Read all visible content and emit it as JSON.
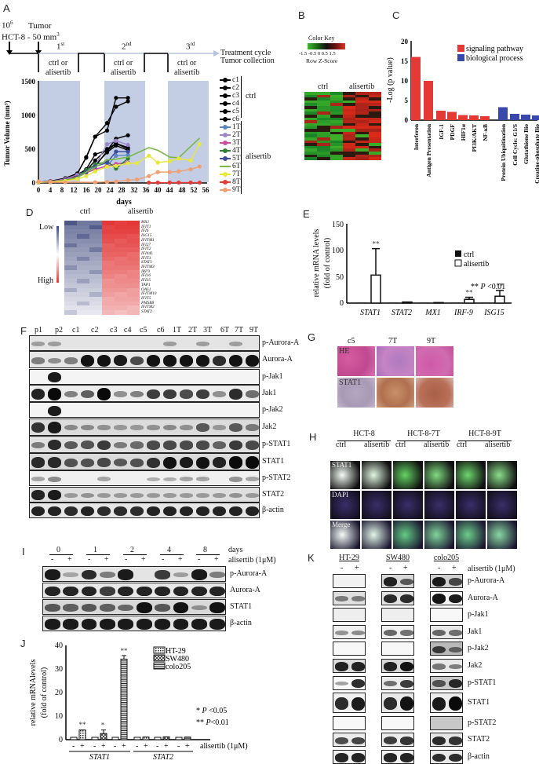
{
  "panel_labels": {
    "A": "A",
    "B": "B",
    "C": "C",
    "D": "D",
    "E": "E",
    "F": "F",
    "G": "G",
    "H": "H",
    "I": "I",
    "J": "J",
    "K": "K"
  },
  "panelA": {
    "schedule": {
      "cells_label": "10",
      "cells_sup": "6",
      "cell_line": "HCT-8 - 50 mm",
      "cell_line_sup": "3",
      "tumor_label": "Tumor",
      "cycles": [
        {
          "num": "1",
          "sup": "st",
          "text1": "ctrl or",
          "text2": "alisertib"
        },
        {
          "num": "2",
          "sup": "nd",
          "text1": "ctrl or",
          "text2": "alisertib"
        },
        {
          "num": "3",
          "sup": "rd",
          "text1": "ctrl or",
          "text2": "alisertib"
        }
      ],
      "arrow_label1": "Treatment cycle",
      "arrow_label2": "Tumor collection"
    },
    "legend": {
      "ctrl_group": "ctrl",
      "alisertib_group": "alisertib",
      "items": [
        "c1",
        "c2",
        "c3",
        "c4",
        "c5",
        "c6",
        "1T",
        "2T",
        "3T",
        "4T",
        "5T",
        "6T",
        "7T",
        "8T",
        "9T"
      ]
    }
  },
  "panelB": {
    "color_key_title": "Color Key",
    "color_key_ticks": "-1.5 -0.5  0  0.5 1.5",
    "color_key_sub": "Row Z-Score",
    "col_ctrl": "ctrl",
    "col_alisertib": "alisertib"
  },
  "panelD": {
    "col_ctrl": "ctrl",
    "col_alisertib": "alisertib",
    "low": "Low",
    "high": "High",
    "genes": [
      "MX1",
      "IFIT1",
      "IFI6",
      "ISG15",
      "IFITM1",
      "IFI27",
      "IFIT2",
      "IFI44L",
      "IFIT3",
      "STAT1",
      "IFITM3",
      "IRF9",
      "IFI16",
      "IFI35",
      "TAP1",
      "OAS1",
      "IFITM10",
      "IFIT5",
      "PMSB8",
      "IFITM2",
      "STAT2"
    ]
  },
  "panelE": {
    "ylabel1": "relative mRNA levels",
    "ylabel2": "(fold of control)",
    "legend_ctrl": "ctrl",
    "legend_alisertib": "alisertib",
    "pnote": "** P <0.01",
    "sig": "**"
  },
  "panelF": {
    "lanes": [
      "p1",
      "p2",
      "c1",
      "c2",
      "c3",
      "c4",
      "c5",
      "c6",
      "1T",
      "2T",
      "3T",
      "6T",
      "7T",
      "9T"
    ],
    "rows": [
      "p-Aurora-A",
      "Aurora-A",
      "p-Jak1",
      "Jak1",
      "p-Jak2",
      "Jak2",
      "p-STAT1",
      "STAT1",
      "p-STAT2",
      "STAT2",
      "β-actin"
    ]
  },
  "panelG": {
    "cols": [
      "c5",
      "7T",
      "9T"
    ],
    "rows": [
      "HE",
      "STAT1"
    ]
  },
  "panelH": {
    "groups": [
      "HCT-8",
      "HCT-8-7T",
      "HCT-8-9T"
    ],
    "sub": [
      "ctrl",
      "alisertib"
    ],
    "rows": [
      "STAT1",
      "DAPI",
      "Merge"
    ]
  },
  "panelI": {
    "days": [
      "0",
      "1",
      "2",
      "4",
      "8"
    ],
    "days_label": "days",
    "treat_label": "alisertib (1μM)",
    "signs": [
      "-",
      "+"
    ],
    "rows": [
      "p-Aurora-A",
      "Aurora-A",
      "STAT1",
      "β-actin"
    ]
  },
  "panelJ": {
    "ylabel1": "relative mRNAlevels",
    "ylabel2": "(fold of control)",
    "legend": [
      "HT-29",
      "SW480",
      "colo205"
    ],
    "p1": "* P <0.05",
    "p2": "** P<0.01",
    "treat_label": "alisertib (1μM)",
    "genes": [
      "STAT1",
      "STAT2"
    ]
  },
  "panelK": {
    "lines": [
      "HT-29",
      "SW480",
      "colo205"
    ],
    "treat_label": "alisertib (1μM)",
    "rows": [
      "p-Aurora-A",
      "Aurora-A",
      "p-Jak1",
      "Jak1",
      "p-Jak2",
      "Jak2",
      "p-STAT1",
      "STAT1",
      "p-STAT2",
      "STAT2",
      "β-actin"
    ]
  },
  "chart_data": [
    {
      "id": "A",
      "type": "line",
      "title": "",
      "xlabel": "days",
      "ylabel": "Tumor Volume (mm3)",
      "xlim": [
        0,
        56
      ],
      "ylim": [
        0,
        1500
      ],
      "xticks": [
        0,
        4,
        8,
        12,
        16,
        20,
        24,
        28,
        32,
        36,
        40,
        44,
        48,
        52,
        56
      ],
      "yticks": [
        0,
        500,
        1000,
        1500
      ],
      "shaded_intervals": [
        [
          0,
          14
        ],
        [
          22,
          36
        ],
        [
          44,
          56
        ]
      ],
      "series": [
        {
          "name": "c1",
          "color": "#000000",
          "x": [
            0,
            4,
            9,
            13,
            16,
            19,
            23,
            26,
            30
          ],
          "y": [
            10,
            20,
            60,
            120,
            200,
            420,
            480,
            650,
            700
          ]
        },
        {
          "name": "c2",
          "color": "#000000",
          "x": [
            0,
            4,
            9,
            13,
            16,
            19,
            23,
            26,
            30
          ],
          "y": [
            10,
            20,
            50,
            100,
            180,
            330,
            500,
            580,
            520
          ]
        },
        {
          "name": "c3",
          "color": "#000000",
          "x": [
            0,
            4,
            9,
            13,
            16,
            19,
            23,
            26,
            30
          ],
          "y": [
            10,
            25,
            70,
            130,
            380,
            680,
            880,
            1120,
            1200
          ]
        },
        {
          "name": "c4",
          "color": "#000000",
          "x": [
            0,
            4,
            9,
            13,
            16,
            19,
            23,
            26,
            30
          ],
          "y": [
            10,
            25,
            70,
            140,
            370,
            680,
            770,
            1250,
            1250
          ]
        },
        {
          "name": "c5",
          "color": "#000000",
          "x": [
            0,
            4,
            9,
            13,
            16,
            19,
            23,
            26,
            30
          ],
          "y": [
            10,
            20,
            50,
            100,
            200,
            260,
            450,
            550,
            480
          ]
        },
        {
          "name": "c6",
          "color": "#000000",
          "x": [
            0,
            4,
            9,
            13,
            16,
            19,
            23,
            26,
            30
          ],
          "y": [
            10,
            20,
            40,
            90,
            160,
            240,
            470,
            580,
            500
          ]
        },
        {
          "name": "1T",
          "color": "#5b86c6",
          "x": [
            0,
            4,
            9,
            13,
            16,
            19,
            23,
            26,
            30
          ],
          "y": [
            10,
            15,
            40,
            80,
            150,
            200,
            250,
            400,
            410
          ]
        },
        {
          "name": "2T",
          "color": "#9a86c9",
          "x": [
            0,
            4,
            9,
            13,
            16,
            19,
            23,
            26,
            30
          ],
          "y": [
            10,
            20,
            60,
            120,
            170,
            250,
            570,
            620,
            560
          ]
        },
        {
          "name": "3T",
          "color": "#c94fa5",
          "x": [
            0,
            4,
            9,
            13,
            16,
            19,
            23,
            26,
            30
          ],
          "y": [
            10,
            20,
            50,
            90,
            150,
            200,
            250,
            280,
            300
          ]
        },
        {
          "name": "4T",
          "color": "#2e7d32",
          "x": [
            0,
            4,
            9,
            13,
            16,
            19,
            23,
            26,
            30
          ],
          "y": [
            10,
            15,
            40,
            80,
            190,
            270,
            320,
            210,
            360
          ]
        },
        {
          "name": "5T",
          "color": "#3a4ba0",
          "x": [
            0,
            4,
            9,
            13,
            16,
            19,
            23,
            26,
            30
          ],
          "y": [
            10,
            15,
            40,
            80,
            160,
            240,
            300,
            460,
            460
          ]
        },
        {
          "name": "6T",
          "color": "#7ab648",
          "x": [
            0,
            4,
            9,
            13,
            16,
            19,
            23,
            26,
            30,
            37,
            40,
            44,
            47,
            54
          ],
          "y": [
            10,
            15,
            40,
            80,
            160,
            230,
            340,
            350,
            380,
            520,
            480,
            380,
            370,
            660
          ]
        },
        {
          "name": "7T",
          "color": "#e8e83a",
          "x": [
            0,
            4,
            9,
            13,
            16,
            19,
            23,
            26,
            30,
            33,
            37,
            40,
            44,
            47,
            51,
            54
          ],
          "y": [
            10,
            15,
            30,
            60,
            100,
            170,
            240,
            250,
            290,
            290,
            400,
            300,
            320,
            360,
            330,
            570
          ]
        },
        {
          "name": "8T",
          "color": "#e53935",
          "x": [
            37,
            40,
            44,
            47,
            51,
            54
          ],
          "y": [
            5,
            5,
            5,
            5,
            5,
            5
          ]
        },
        {
          "name": "9T",
          "color": "#f0a070",
          "x": [
            0,
            4,
            9,
            19,
            23,
            26,
            30,
            33,
            37,
            40,
            44,
            47,
            51,
            54
          ],
          "y": [
            20,
            10,
            10,
            10,
            15,
            20,
            40,
            50,
            100,
            160,
            160,
            170,
            200,
            240
          ]
        }
      ]
    },
    {
      "id": "C",
      "type": "bar",
      "ylabel": "-Log (p value)",
      "ylim": [
        0,
        20
      ],
      "yticks": [
        0,
        5,
        10,
        15,
        20
      ],
      "legend": [
        {
          "name": "signaling pathway",
          "color": "#e53935"
        },
        {
          "name": "biological process",
          "color": "#3949ab"
        }
      ],
      "categories": [
        "Interferon",
        "Antigen Presentation",
        "IGF-1",
        "PDGF",
        "HIF1α",
        "PI3K/AKT",
        "NF-κB",
        "Protein Ubiquitination",
        "Cell Cycle: G1/S",
        "Glutathione Bio",
        "Creatine-phosphate Bio"
      ],
      "groups": [
        "signaling pathway",
        "signaling pathway",
        "signaling pathway",
        "signaling pathway",
        "signaling pathway",
        "signaling pathway",
        "signaling pathway",
        "biological process",
        "biological process",
        "biological process",
        "biological process"
      ],
      "values": [
        16.1,
        10.0,
        2.4,
        2.1,
        1.3,
        1.2,
        1.0,
        3.3,
        1.6,
        1.4,
        1.2
      ]
    },
    {
      "id": "E",
      "type": "bar",
      "ylabel": "relative mRNA levels (fold of control)",
      "ylim": [
        0,
        150
      ],
      "yticks": [
        0,
        50,
        100,
        150
      ],
      "categories": [
        "STAT1",
        "STAT2",
        "MX1",
        "IRF-9",
        "ISG15"
      ],
      "series": [
        {
          "name": "ctrl",
          "values": [
            1,
            1,
            1,
            1,
            1
          ],
          "errors": [
            0,
            0,
            0,
            0,
            0
          ]
        },
        {
          "name": "alisertib",
          "values": [
            53,
            2,
            1,
            7,
            13
          ],
          "errors": [
            50,
            0,
            0,
            4,
            11
          ]
        }
      ],
      "annotations": [
        "** on STAT1",
        "** on IRF-9",
        "** on ISG15",
        "** P <0.01"
      ]
    },
    {
      "id": "J",
      "type": "bar",
      "ylabel": "relative mRNAlevels (fold of control)",
      "ylim": [
        0,
        40
      ],
      "yticks": [
        0,
        10,
        20,
        30,
        40
      ],
      "categories": [
        "STAT1 HT-29",
        "STAT1 SW480",
        "STAT1 colo205",
        "STAT2 HT-29",
        "STAT2 SW480",
        "STAT2 colo205"
      ],
      "series": [
        {
          "name": "-",
          "values": [
            1,
            1,
            1,
            1,
            1,
            1
          ]
        },
        {
          "name": "+ alisertib (1μM)",
          "values": [
            4.1,
            2.6,
            34.2,
            1.1,
            1.2,
            1.1
          ],
          "errors": [
            0.2,
            1.5,
            1.5,
            0.1,
            0.2,
            0.1
          ]
        }
      ],
      "legend": [
        "HT-29",
        "SW480",
        "colo205"
      ],
      "annotations": [
        "** HT-29 STAT1",
        "* SW480 STAT1",
        "** colo205 STAT1",
        "* P <0.05",
        "** P<0.01"
      ]
    }
  ]
}
